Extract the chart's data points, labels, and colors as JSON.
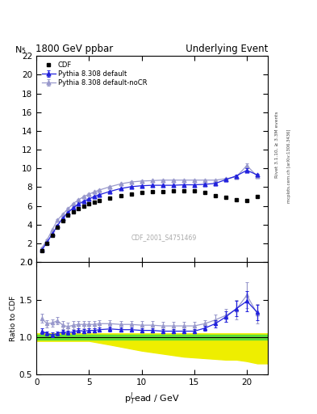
{
  "title_left": "1800 GeV ppbar",
  "title_right": "Underlying Event",
  "ylabel_main": "N$_5$",
  "ylabel_ratio": "Ratio to CDF",
  "xlabel": "p$_T^l$ead / GeV",
  "right_label_top": "Rivet 3.1.10, ≥ 3.3M events",
  "right_label_bot": "mcplots.cern.ch [arXiv:1306.3436]",
  "watermark": "CDF_2001_S4751469",
  "ylim_main": [
    0,
    22
  ],
  "ylim_ratio": [
    0.5,
    2.0
  ],
  "xlim": [
    0,
    22
  ],
  "cdf_x": [
    0.5,
    1.0,
    1.5,
    2.0,
    2.5,
    3.0,
    3.5,
    4.0,
    4.5,
    5.0,
    5.5,
    6.0,
    7.0,
    8.0,
    9.0,
    10.0,
    11.0,
    12.0,
    13.0,
    14.0,
    15.0,
    16.0,
    17.0,
    18.0,
    19.0,
    20.0,
    21.0
  ],
  "cdf_y": [
    1.2,
    2.0,
    2.9,
    3.7,
    4.4,
    5.0,
    5.4,
    5.7,
    6.0,
    6.2,
    6.4,
    6.55,
    6.8,
    7.1,
    7.3,
    7.45,
    7.5,
    7.55,
    7.6,
    7.6,
    7.6,
    7.4,
    7.1,
    6.9,
    6.65,
    6.6,
    7.0
  ],
  "cdf_yerr": [
    0.05,
    0.05,
    0.05,
    0.05,
    0.05,
    0.05,
    0.05,
    0.05,
    0.05,
    0.05,
    0.05,
    0.05,
    0.05,
    0.05,
    0.05,
    0.05,
    0.05,
    0.05,
    0.05,
    0.05,
    0.05,
    0.05,
    0.05,
    0.05,
    0.05,
    0.05,
    0.05
  ],
  "pythia_x": [
    0.5,
    1.0,
    1.5,
    2.0,
    2.5,
    3.0,
    3.5,
    4.0,
    4.5,
    5.0,
    5.5,
    6.0,
    7.0,
    8.0,
    9.0,
    10.0,
    11.0,
    12.0,
    13.0,
    14.0,
    15.0,
    16.0,
    17.0,
    18.0,
    19.0,
    20.0,
    21.0
  ],
  "pythia_y": [
    1.3,
    2.1,
    3.0,
    3.9,
    4.7,
    5.3,
    5.8,
    6.2,
    6.5,
    6.75,
    7.0,
    7.2,
    7.55,
    7.85,
    8.05,
    8.15,
    8.2,
    8.2,
    8.2,
    8.25,
    8.25,
    8.3,
    8.4,
    8.8,
    9.2,
    9.8,
    9.3
  ],
  "pythia_yerr": [
    0.05,
    0.05,
    0.05,
    0.05,
    0.05,
    0.05,
    0.05,
    0.05,
    0.05,
    0.05,
    0.05,
    0.05,
    0.05,
    0.05,
    0.05,
    0.05,
    0.05,
    0.05,
    0.05,
    0.05,
    0.05,
    0.05,
    0.05,
    0.1,
    0.15,
    0.2,
    0.15
  ],
  "pythia_nocr_x": [
    0.5,
    1.0,
    1.5,
    2.0,
    2.5,
    3.0,
    3.5,
    4.0,
    4.5,
    5.0,
    5.5,
    6.0,
    7.0,
    8.0,
    9.0,
    10.0,
    11.0,
    12.0,
    13.0,
    14.0,
    15.0,
    16.0,
    17.0,
    18.0,
    19.0,
    20.0,
    21.0
  ],
  "pythia_nocr_y": [
    1.5,
    2.35,
    3.45,
    4.5,
    5.1,
    5.7,
    6.25,
    6.65,
    7.0,
    7.25,
    7.5,
    7.7,
    8.05,
    8.35,
    8.55,
    8.65,
    8.7,
    8.75,
    8.75,
    8.75,
    8.75,
    8.75,
    8.75,
    8.9,
    9.1,
    10.3,
    9.15
  ],
  "pythia_nocr_yerr": [
    0.06,
    0.06,
    0.06,
    0.06,
    0.06,
    0.06,
    0.06,
    0.06,
    0.06,
    0.06,
    0.06,
    0.06,
    0.06,
    0.06,
    0.06,
    0.06,
    0.06,
    0.06,
    0.06,
    0.06,
    0.06,
    0.06,
    0.06,
    0.1,
    0.15,
    0.25,
    0.2
  ],
  "ratio_pythia_y": [
    1.08,
    1.05,
    1.03,
    1.05,
    1.07,
    1.06,
    1.07,
    1.09,
    1.08,
    1.09,
    1.09,
    1.1,
    1.11,
    1.1,
    1.1,
    1.09,
    1.09,
    1.08,
    1.08,
    1.08,
    1.08,
    1.12,
    1.18,
    1.27,
    1.38,
    1.48,
    1.33
  ],
  "ratio_pythia_yerr": [
    0.04,
    0.03,
    0.03,
    0.03,
    0.03,
    0.03,
    0.03,
    0.03,
    0.03,
    0.03,
    0.03,
    0.03,
    0.03,
    0.03,
    0.03,
    0.03,
    0.03,
    0.03,
    0.03,
    0.03,
    0.03,
    0.03,
    0.05,
    0.07,
    0.1,
    0.13,
    0.1
  ],
  "ratio_nocr_y": [
    1.25,
    1.18,
    1.19,
    1.22,
    1.16,
    1.14,
    1.16,
    1.17,
    1.17,
    1.17,
    1.17,
    1.18,
    1.18,
    1.17,
    1.17,
    1.16,
    1.16,
    1.15,
    1.15,
    1.15,
    1.15,
    1.18,
    1.23,
    1.29,
    1.37,
    1.56,
    1.31
  ],
  "ratio_nocr_yerr": [
    0.06,
    0.05,
    0.05,
    0.05,
    0.05,
    0.05,
    0.05,
    0.05,
    0.05,
    0.05,
    0.05,
    0.05,
    0.05,
    0.05,
    0.05,
    0.05,
    0.05,
    0.05,
    0.05,
    0.05,
    0.05,
    0.05,
    0.07,
    0.09,
    0.13,
    0.17,
    0.13
  ],
  "yellow_band_x": [
    0.0,
    0.5,
    1.0,
    2.0,
    3.0,
    5.0,
    7.0,
    10.0,
    12.0,
    14.0,
    16.0,
    18.0,
    19.0,
    20.0,
    21.0,
    22.0
  ],
  "yellow_band_lo": [
    0.95,
    0.95,
    0.95,
    0.95,
    0.95,
    0.95,
    0.9,
    0.82,
    0.78,
    0.74,
    0.72,
    0.7,
    0.7,
    0.68,
    0.65,
    0.65
  ],
  "yellow_band_hi": [
    1.05,
    1.05,
    1.05,
    1.05,
    1.05,
    1.05,
    1.05,
    1.05,
    1.05,
    1.05,
    1.05,
    1.05,
    1.05,
    1.05,
    1.05,
    1.05
  ],
  "green_band_x": [
    0.0,
    0.5,
    1.0,
    2.0,
    3.0,
    5.0,
    7.0,
    10.0,
    12.0,
    14.0,
    16.0,
    18.0,
    19.0,
    20.0,
    21.0,
    22.0
  ],
  "green_band_lo": [
    0.97,
    0.97,
    0.97,
    0.97,
    0.97,
    0.97,
    0.97,
    0.97,
    0.97,
    0.97,
    0.97,
    0.97,
    0.97,
    0.97,
    0.97,
    0.97
  ],
  "green_band_hi": [
    1.03,
    1.03,
    1.03,
    1.03,
    1.03,
    1.03,
    1.03,
    1.03,
    1.03,
    1.03,
    1.03,
    1.03,
    1.03,
    1.03,
    1.03,
    1.03
  ],
  "color_cdf": "#000000",
  "color_pythia": "#2222dd",
  "color_pythia_nocr": "#9999cc",
  "color_green": "#44dd44",
  "color_yellow": "#eeee00",
  "bg_color": "#ffffff"
}
